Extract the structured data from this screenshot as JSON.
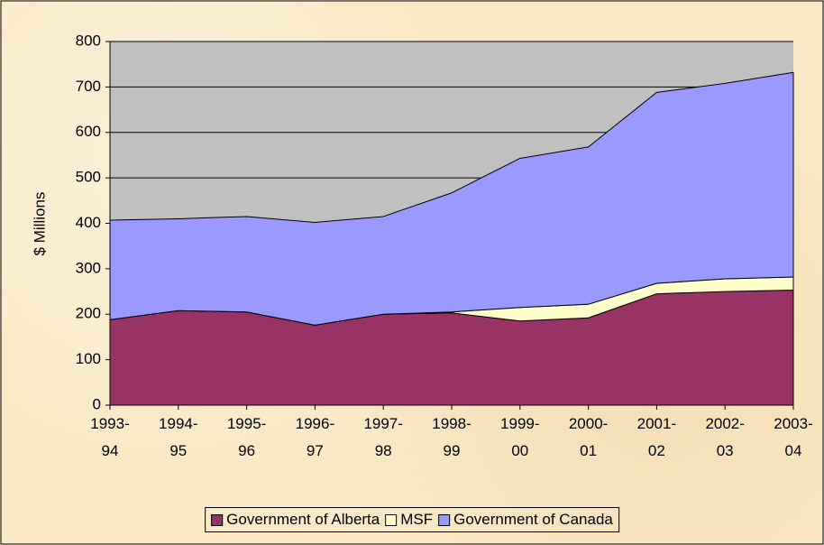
{
  "chart_data": {
    "type": "stacked_area",
    "y_label": "$ Millions",
    "categories": [
      "1993-94",
      "1994-95",
      "1995-96",
      "1996-97",
      "1997-98",
      "1998-99",
      "1999-00",
      "2000-01",
      "2001-02",
      "2002-03",
      "2003-04"
    ],
    "series": [
      {
        "name": "Government of Alberta",
        "color": "#993366",
        "values": [
          188,
          208,
          205,
          176,
          200,
          203,
          185,
          192,
          245,
          250,
          253
        ]
      },
      {
        "name": "MSF",
        "color": "#ffffcc",
        "values": [
          0,
          0,
          0,
          0,
          0,
          2,
          30,
          30,
          23,
          28,
          29
        ]
      },
      {
        "name": "Government of Canada",
        "color": "#9999ff",
        "values": [
          219,
          202,
          210,
          226,
          215,
          262,
          328,
          346,
          420,
          430,
          450
        ]
      }
    ],
    "ylim": [
      0,
      800
    ],
    "yticks": [
      0,
      100,
      200,
      300,
      400,
      500,
      600,
      700,
      800
    ],
    "plot_background": "#c0c0c0",
    "grid": true,
    "legend": "bottom"
  }
}
